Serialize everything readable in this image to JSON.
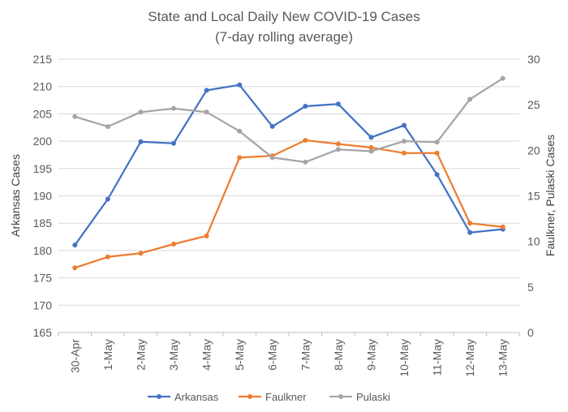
{
  "chart_data": {
    "type": "line",
    "title": "State and Local Daily New COVID-19 Cases",
    "subtitle": "(7-day rolling average)",
    "categories": [
      "30-Apr",
      "1-May",
      "2-May",
      "3-May",
      "4-May",
      "5-May",
      "6-May",
      "7-May",
      "8-May",
      "9-May",
      "10-May",
      "11-May",
      "12-May",
      "13-May"
    ],
    "ylabel_left": "Arkansas Cases",
    "ylabel_right": "Faulkner, Pulaski Cases",
    "ylim_left": [
      165,
      215
    ],
    "ylim_right": [
      0,
      30
    ],
    "yticks_left": [
      165,
      170,
      175,
      180,
      185,
      190,
      195,
      200,
      205,
      210,
      215
    ],
    "yticks_right": [
      0,
      5,
      10,
      15,
      20,
      25,
      30
    ],
    "grid": true,
    "legend_position": "bottom",
    "series": [
      {
        "name": "Arkansas",
        "axis": "left",
        "color": "#4472c4",
        "values": [
          181.0,
          189.4,
          199.9,
          199.6,
          209.3,
          210.3,
          202.7,
          206.4,
          206.8,
          200.7,
          202.9,
          193.9,
          183.3,
          183.9
        ]
      },
      {
        "name": "Faulkner",
        "axis": "right",
        "color": "#ed7d31",
        "values": [
          7.1,
          8.3,
          8.7,
          9.7,
          10.6,
          19.2,
          19.4,
          21.1,
          20.7,
          20.3,
          19.7,
          19.7,
          12.0,
          11.6
        ]
      },
      {
        "name": "Pulaski",
        "axis": "right",
        "color": "#a5a5a5",
        "values": [
          23.7,
          22.6,
          24.2,
          24.6,
          24.2,
          22.1,
          19.2,
          18.7,
          20.1,
          19.9,
          21.0,
          20.9,
          25.6,
          27.9
        ]
      }
    ]
  }
}
